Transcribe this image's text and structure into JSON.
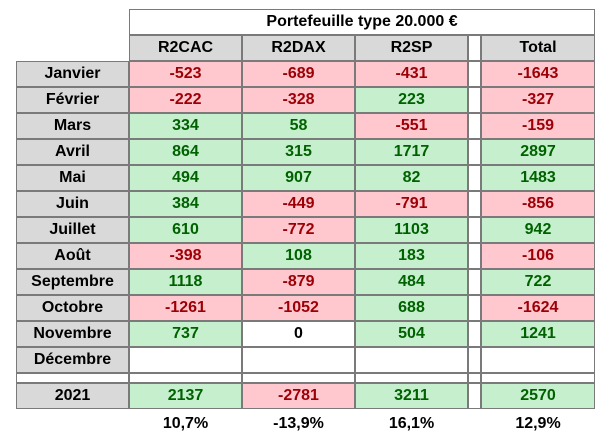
{
  "title": "Portefeuille type 20.000 €",
  "columns": [
    "R2CAC",
    "R2DAX",
    "R2SP",
    "Total"
  ],
  "rows": [
    {
      "label": "Janvier",
      "values": [
        "-523",
        "-689",
        "-431",
        "-1643"
      ]
    },
    {
      "label": "Février",
      "values": [
        "-222",
        "-328",
        "223",
        "-327"
      ]
    },
    {
      "label": "Mars",
      "values": [
        "334",
        "58",
        "-551",
        "-159"
      ]
    },
    {
      "label": "Avril",
      "values": [
        "864",
        "315",
        "1717",
        "2897"
      ]
    },
    {
      "label": "Mai",
      "values": [
        "494",
        "907",
        "82",
        "1483"
      ]
    },
    {
      "label": "Juin",
      "values": [
        "384",
        "-449",
        "-791",
        "-856"
      ]
    },
    {
      "label": "Juillet",
      "values": [
        "610",
        "-772",
        "1103",
        "942"
      ]
    },
    {
      "label": "Août",
      "values": [
        "-398",
        "108",
        "183",
        "-106"
      ]
    },
    {
      "label": "Septembre",
      "values": [
        "1118",
        "-879",
        "484",
        "722"
      ]
    },
    {
      "label": "Octobre",
      "values": [
        "-1261",
        "-1052",
        "688",
        "-1624"
      ]
    },
    {
      "label": "Novembre",
      "values": [
        "737",
        "0",
        "504",
        "1241"
      ]
    },
    {
      "label": "Décembre",
      "values": [
        "",
        "",
        "",
        ""
      ]
    }
  ],
  "total_row": {
    "label": "2021",
    "values": [
      "2137",
      "-2781",
      "3211",
      "2570"
    ]
  },
  "percentages": [
    "10,7%",
    "-13,9%",
    "16,1%",
    "12,9%"
  ],
  "colors": {
    "positive_fill": "#c6efce",
    "positive_text": "#006100",
    "negative_fill": "#ffc7ce",
    "negative_text": "#9c0006",
    "header_fill": "#d9d9d9"
  }
}
